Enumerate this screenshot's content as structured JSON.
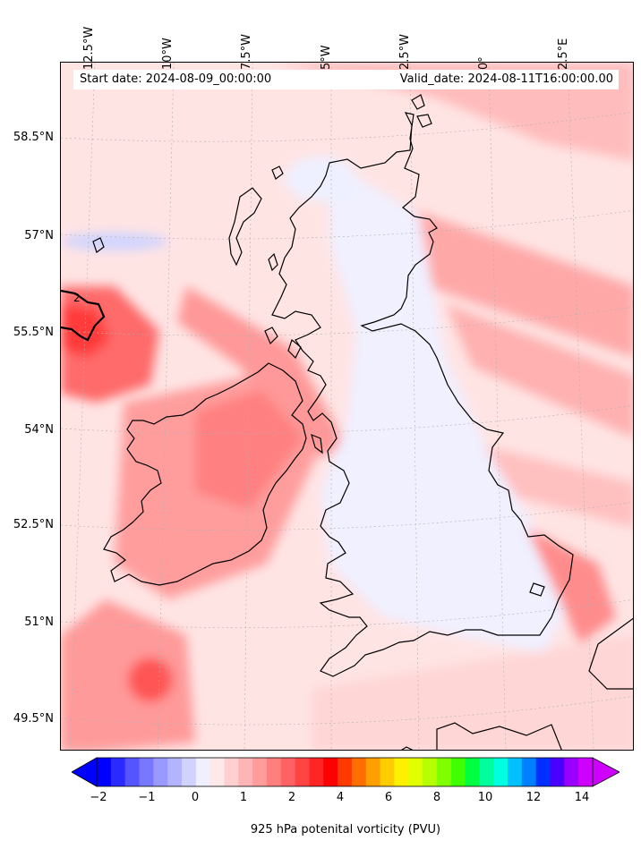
{
  "header": {
    "start_label": "Start date: 2024-08-09_00:00:00",
    "valid_label": "Valid_date: 2024-08-11T16:00:00.00"
  },
  "axes": {
    "lon_labels": [
      "12.5°W",
      "10°W",
      "7.5°W",
      "5°W",
      "2.5°W",
      "0°",
      "2.5°E"
    ],
    "lat_labels": [
      "58.5°N",
      "57°N",
      "55.5°N",
      "54°N",
      "52.5°N",
      "51°N",
      "49.5°N"
    ]
  },
  "contour_label": "2",
  "colorbar": {
    "ticks": [
      "−2",
      "−1",
      "0",
      "1",
      "2",
      "4",
      "6",
      "8",
      "10",
      "12",
      "14"
    ],
    "label": "925 hPa potenital vorticity (PVU)",
    "colors": [
      "#0000ff",
      "#2a2aff",
      "#5555ff",
      "#7777ff",
      "#9999ff",
      "#b3b3ff",
      "#d2d2ff",
      "#efefff",
      "#ffe8e8",
      "#ffd0d0",
      "#ffb5b5",
      "#ff9c9c",
      "#ff7f7f",
      "#ff6262",
      "#ff4444",
      "#ff2525",
      "#ff0000",
      "#ff3a00",
      "#ff6e00",
      "#ffa000",
      "#ffcc00",
      "#fff000",
      "#e0ff00",
      "#b5ff00",
      "#80ff00",
      "#40ff00",
      "#00ff40",
      "#00ff9c",
      "#00ffe0",
      "#00c0ff",
      "#0080ff",
      "#0030ff",
      "#4a00ff",
      "#9a00ff",
      "#d000ff"
    ]
  }
}
